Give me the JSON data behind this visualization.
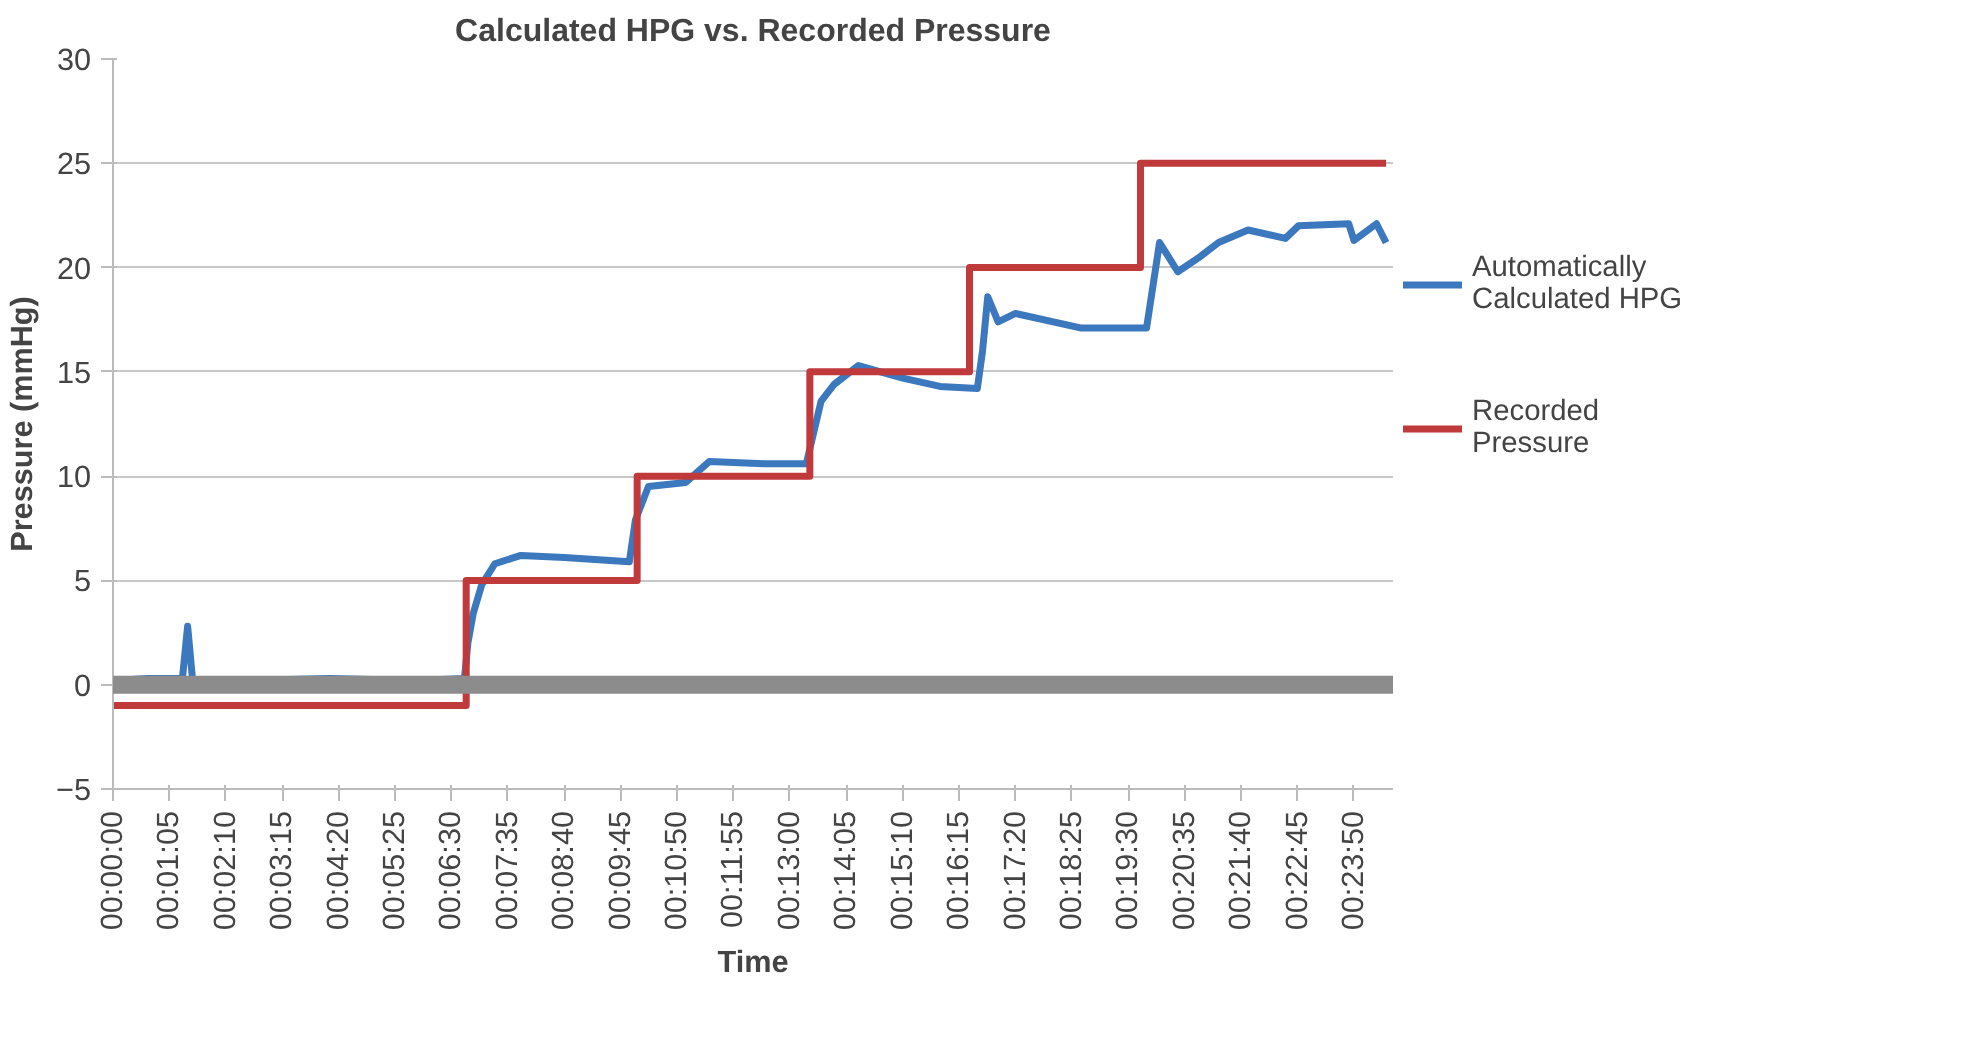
{
  "chart_data": {
    "type": "line",
    "title": "Calculated HPG vs. Recorded Pressure",
    "xlabel": "Time",
    "ylabel": "Pressure (mmHg)",
    "xlim": [
      0,
      1475
    ],
    "ylim": [
      -5,
      30
    ],
    "yticks": [
      {
        "value": -5,
        "label": "−5"
      },
      0,
      5,
      10,
      15,
      20,
      25,
      30
    ],
    "xticks": [
      {
        "value": 0,
        "label": "00:00:00"
      },
      {
        "value": 65,
        "label": "00:01:05"
      },
      {
        "value": 130,
        "label": "00:02:10"
      },
      {
        "value": 195,
        "label": "00:03:15"
      },
      {
        "value": 260,
        "label": "00:04:20"
      },
      {
        "value": 325,
        "label": "00:05:25"
      },
      {
        "value": 390,
        "label": "00:06:30"
      },
      {
        "value": 455,
        "label": "00:07:35"
      },
      {
        "value": 520,
        "label": "00:08:40"
      },
      {
        "value": 585,
        "label": "00:09:45"
      },
      {
        "value": 650,
        "label": "00:10:50"
      },
      {
        "value": 715,
        "label": "00:11:55"
      },
      {
        "value": 780,
        "label": "00:13:00"
      },
      {
        "value": 845,
        "label": "00:14:05"
      },
      {
        "value": 910,
        "label": "00:15:10"
      },
      {
        "value": 975,
        "label": "00:16:15"
      },
      {
        "value": 1040,
        "label": "00:17:20"
      },
      {
        "value": 1105,
        "label": "00:18:25"
      },
      {
        "value": 1170,
        "label": "00:19:30"
      },
      {
        "value": 1235,
        "label": "00:20:35"
      },
      {
        "value": 1300,
        "label": "00:21:40"
      },
      {
        "value": 1365,
        "label": "00:22:45"
      },
      {
        "value": 1430,
        "label": "00:23:50"
      }
    ],
    "grid": "y",
    "legend": "right",
    "ref_lines": [
      {
        "axis": "y",
        "value": 0,
        "color": "#8c8c8c"
      }
    ],
    "series": [
      {
        "name": "Automatically Calculated HPG",
        "color": "#3b78bd",
        "x": [
          0,
          40,
          80,
          86,
          92,
          150,
          250,
          350,
          405,
          409,
          415,
          425,
          440,
          470,
          520,
          595,
          602,
          617,
          660,
          687,
          750,
          799,
          816,
          831,
          859,
          910,
          953,
          996,
          1002,
          1008,
          1020,
          1040,
          1116,
          1191,
          1206,
          1227,
          1252,
          1274,
          1308,
          1351,
          1366,
          1424,
          1430,
          1456,
          1467
        ],
        "values": [
          0.2,
          0.3,
          0.3,
          2.8,
          0.1,
          0.2,
          0.3,
          0.2,
          0.3,
          2.0,
          3.4,
          4.8,
          5.8,
          6.2,
          6.1,
          5.9,
          7.9,
          9.5,
          9.7,
          10.7,
          10.6,
          10.6,
          13.6,
          14.4,
          15.3,
          14.7,
          14.3,
          14.2,
          16.0,
          18.6,
          17.4,
          17.8,
          17.1,
          17.1,
          21.2,
          19.8,
          20.5,
          21.2,
          21.8,
          21.4,
          22.0,
          22.1,
          21.3,
          22.1,
          21.2
        ]
      },
      {
        "name": "Recorded Pressure",
        "color": "#c0393b",
        "type": "step",
        "x": [
          0,
          407,
          604,
          803,
          987,
          1184,
          1467
        ],
        "values": [
          -1,
          5,
          10,
          15,
          20,
          25,
          25
        ]
      }
    ]
  }
}
